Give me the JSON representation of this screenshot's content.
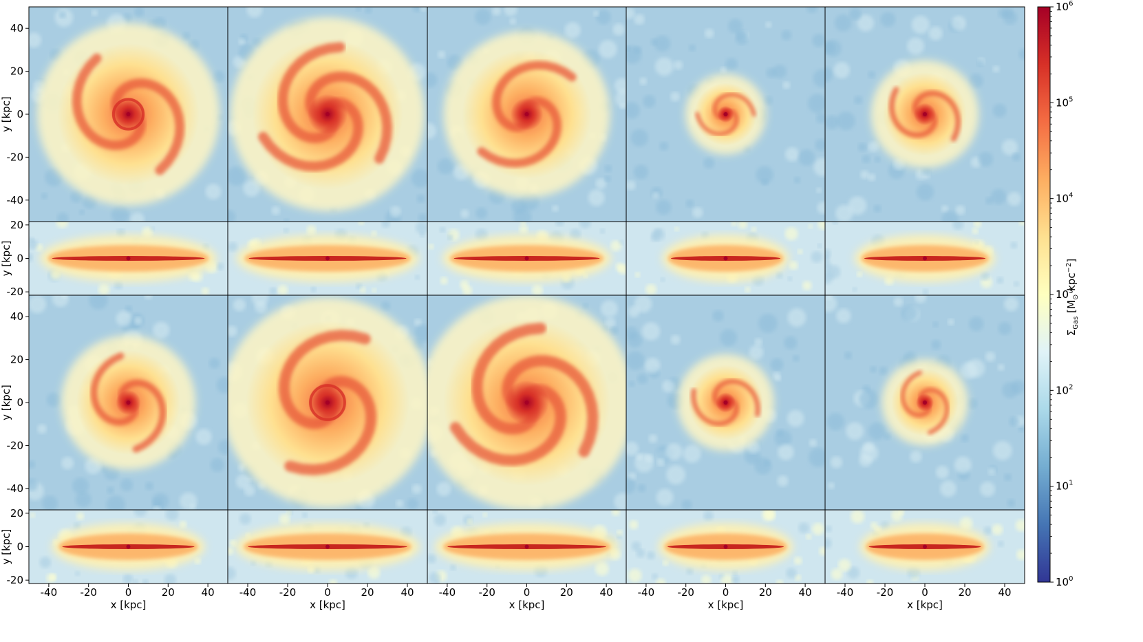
{
  "figure": {
    "x_axis_label": "x [kpc]",
    "y_axis_label": "y [kpc]",
    "face_on_yticks": [
      "40",
      "20",
      "0",
      "-20",
      "-40"
    ],
    "edge_on_yticks": [
      "20",
      "0",
      "-20"
    ],
    "xticks": [
      "-40",
      "-20",
      "0",
      "20",
      "40"
    ],
    "colorbar": {
      "label_parts": {
        "sigma": "Σ",
        "sub": "Gas",
        "units": " [M",
        "sun": "⊙",
        "kpc": " kpc",
        "exp": "−2",
        "close": "]"
      },
      "ticks": [
        {
          "base": "10",
          "exp": "6"
        },
        {
          "base": "10",
          "exp": "5"
        },
        {
          "base": "10",
          "exp": "4"
        },
        {
          "base": "10",
          "exp": "3"
        },
        {
          "base": "10",
          "exp": "2"
        },
        {
          "base": "10",
          "exp": "1"
        },
        {
          "base": "10",
          "exp": "0"
        }
      ],
      "colors": [
        "#313695",
        "#4575b4",
        "#74add1",
        "#abd9e9",
        "#e0f3f8",
        "#ffffbf",
        "#fee090",
        "#fdae61",
        "#f46d43",
        "#d73027",
        "#a50026"
      ],
      "scale": "log",
      "range": [
        1,
        1000000
      ]
    },
    "background_color": "#a9cde2",
    "panels_per_row": 5,
    "face_on_panels": [
      {
        "arms": 2,
        "angle": 0,
        "core": 0.9,
        "size": 0.68,
        "ring": true
      },
      {
        "arms": 3,
        "angle": 40,
        "core": 1.0,
        "size": 0.72,
        "ring": false
      },
      {
        "arms": 2,
        "angle": 80,
        "core": 0.95,
        "size": 0.62,
        "ring": false
      },
      {
        "arms": 2,
        "angle": 120,
        "core": 1.0,
        "size": 0.3,
        "ring": false
      },
      {
        "arms": 2,
        "angle": 160,
        "core": 1.0,
        "size": 0.4,
        "ring": false
      },
      {
        "arms": 2,
        "angle": 200,
        "core": 0.9,
        "size": 0.5,
        "ring": false
      },
      {
        "arms": 2,
        "angle": 240,
        "core": 0.9,
        "size": 0.78,
        "ring": true
      },
      {
        "arms": 3,
        "angle": 280,
        "core": 1.0,
        "size": 0.8,
        "ring": false
      },
      {
        "arms": 2,
        "angle": 320,
        "core": 1.0,
        "size": 0.36,
        "ring": false
      },
      {
        "arms": 2,
        "angle": 20,
        "core": 1.0,
        "size": 0.32,
        "ring": false
      }
    ]
  }
}
